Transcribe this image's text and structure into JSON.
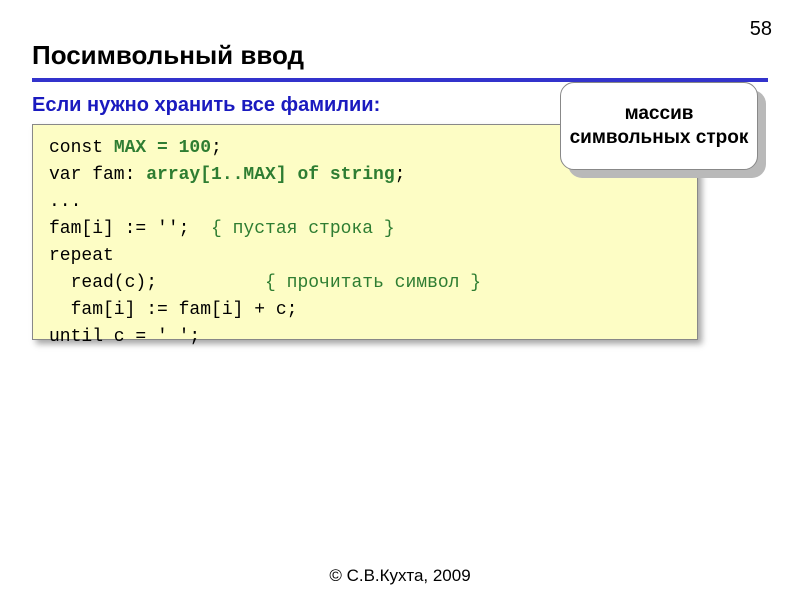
{
  "page_number": "58",
  "title": "Посимвольный ввод",
  "subtitle": "Если нужно хранить все фамилии:",
  "callout": "массив символьных строк",
  "code": {
    "l1a": "const ",
    "l1b": "MAX = 100",
    "l1c": ";",
    "l2a": "var fam: ",
    "l2b": "array[1..MAX] of string",
    "l2c": ";",
    "l3": "...",
    "l4a": "fam[i] := '';  ",
    "l4c": "{ пустая строка }",
    "l5": "repeat",
    "l6a": "  read(c);          ",
    "l6c": "{ прочитать символ }",
    "l7": "  fam[i] := fam[i] + c;",
    "l8": "until c = ' ';"
  },
  "footer": "© С.В.Кухта, 2009",
  "colors": {
    "divider": "#3333cc",
    "subtitle": "#1a1abf",
    "code_bg": "#fdfdc5",
    "highlight": "#2e7d32"
  }
}
